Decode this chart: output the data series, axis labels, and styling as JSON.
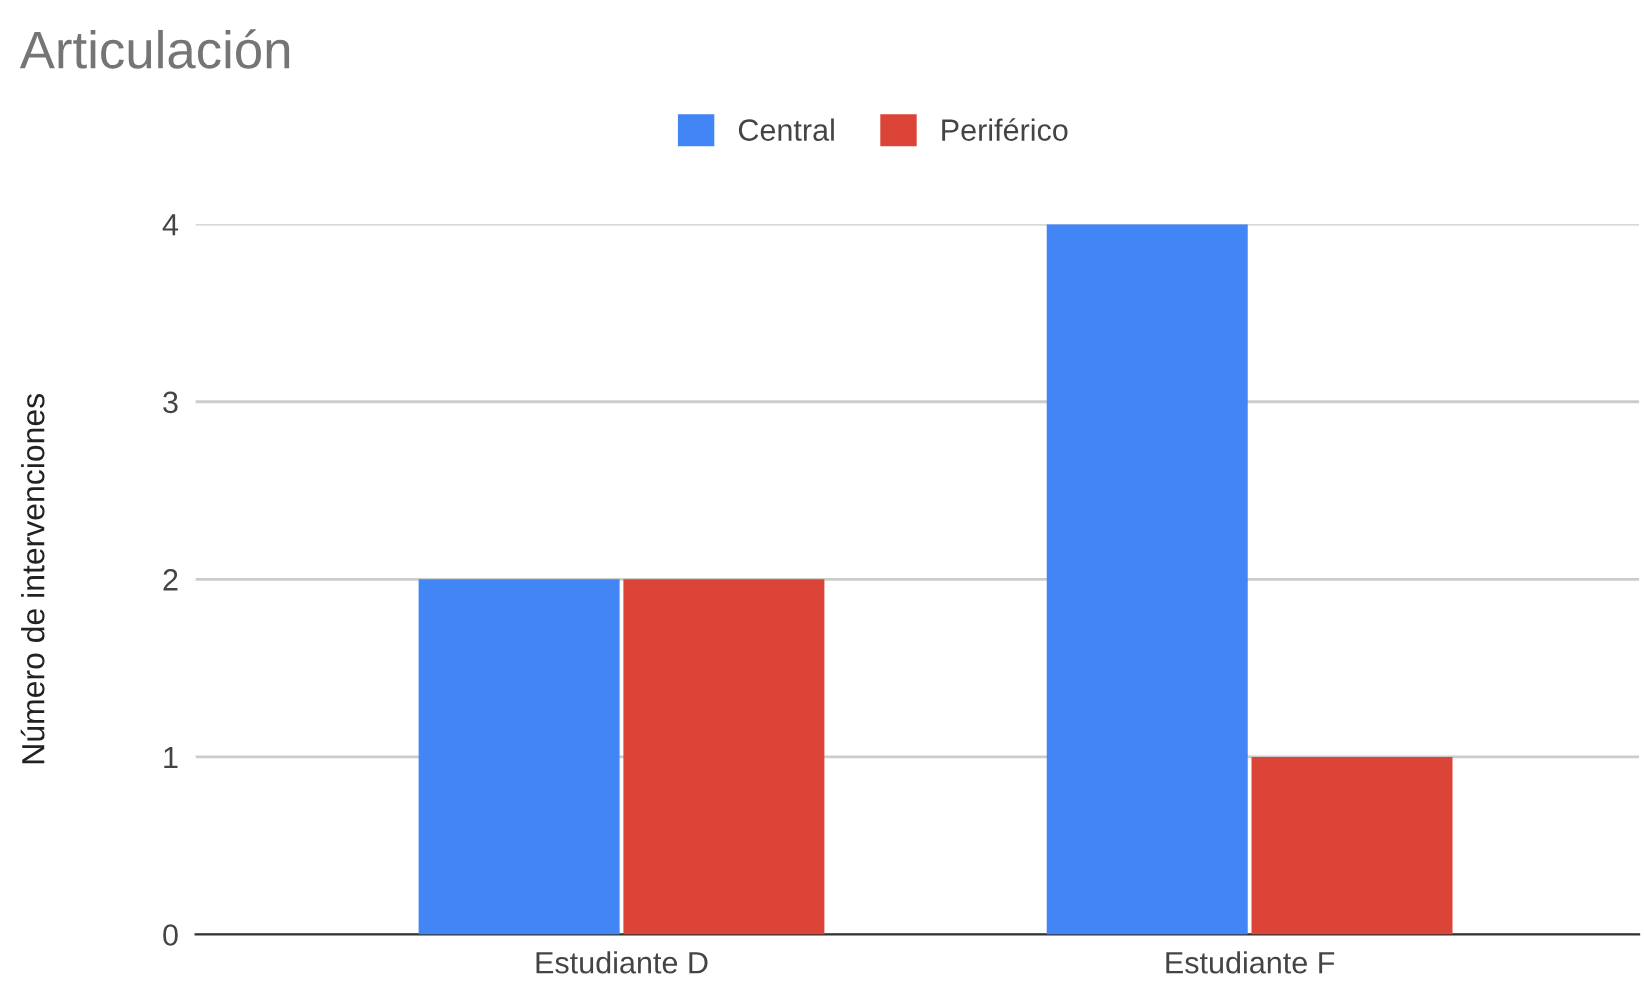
{
  "chart_data": {
    "type": "bar",
    "title": "Articulación",
    "ylabel": "Número de intervenciones",
    "categories": [
      "Estudiante D",
      "Estudiante F"
    ],
    "series": [
      {
        "name": "Central",
        "color": "#4285f4",
        "values": [
          2,
          4
        ]
      },
      {
        "name": "Periférico",
        "color": "#db4437",
        "values": [
          2,
          1
        ]
      }
    ],
    "ylim": [
      0,
      4
    ],
    "yticks": [
      0,
      1,
      2,
      3,
      4
    ],
    "grid": "y",
    "legend": "top"
  }
}
